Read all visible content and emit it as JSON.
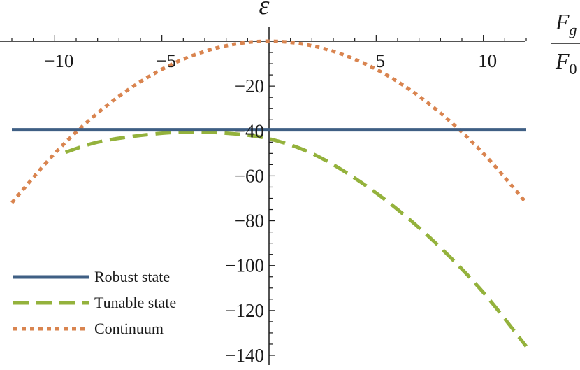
{
  "chart_data": {
    "type": "line",
    "ylabel": "ε",
    "xlabel": {
      "numerator": "F",
      "numerator_sub": "g",
      "denominator": "F",
      "denominator_sub": "0"
    },
    "xlim": [
      -12,
      12
    ],
    "ylim": [
      -141,
      2
    ],
    "x_ticks": [
      -10,
      -5,
      5,
      10
    ],
    "x_tick_labels": [
      "−10",
      "−5",
      "5",
      "10"
    ],
    "y_ticks": [
      -20,
      -40,
      -60,
      -80,
      -100,
      -120,
      -140
    ],
    "y_tick_labels": [
      "−20",
      "−40",
      "−60",
      "−80",
      "−100",
      "−120",
      "−140"
    ],
    "grid": false,
    "legend_position": "bottom-left",
    "series": [
      {
        "name": "Robust state",
        "style": "solid",
        "color": "#3f5f84",
        "x": [
          -12,
          12
        ],
        "y": [
          -39.5,
          -39.5
        ]
      },
      {
        "name": "Tunable state",
        "style": "dashed",
        "color": "#94b23c",
        "x": [
          -9.5,
          -8,
          -6,
          -4,
          -2,
          0,
          2,
          4,
          6,
          8,
          10,
          12
        ],
        "y": [
          -49.5,
          -45,
          -42,
          -40.5,
          -41,
          -43.5,
          -50,
          -61,
          -75,
          -92,
          -112,
          -136
        ]
      },
      {
        "name": "Continuum",
        "style": "dotted",
        "color": "#d9844f",
        "x": [
          -12,
          -10,
          -8,
          -6,
          -4,
          -2,
          0,
          2,
          4,
          6,
          8,
          10,
          12
        ],
        "y": [
          -72,
          -50,
          -32,
          -18,
          -8,
          -2,
          0,
          -2,
          -8,
          -18,
          -32,
          -50,
          -72
        ]
      }
    ]
  }
}
